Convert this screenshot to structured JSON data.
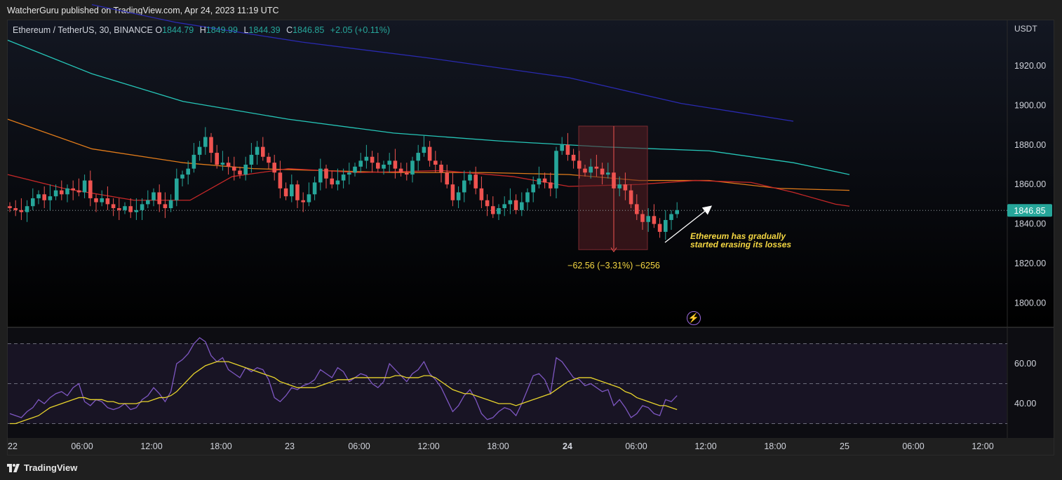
{
  "header": {
    "published": "WatcherGuru published on TradingView.com, Apr 24, 2023 11:19 UTC"
  },
  "symbol": {
    "name": "Ethereum / TetherUS, 30, BINANCE",
    "o_label": "O",
    "o": "1844.79",
    "h_label": "H",
    "h": "1849.99",
    "l_label": "L",
    "l": "1844.39",
    "c_label": "C",
    "c": "1846.85",
    "change": "+2.05 (+0.11%)"
  },
  "currency": "USDT",
  "footer": {
    "brand": "TradingView"
  },
  "colors": {
    "bg_top": "#131722",
    "bg_bottom": "#000000",
    "up": "#26a69a",
    "down": "#ef5350",
    "ema_teal": "#26c6b8",
    "ema_orange": "#e07b1a",
    "ema_red": "#c62828",
    "ema_blue": "#2a2ab0",
    "rsi": "#7e57c2",
    "rsi_ma": "#e8d42c",
    "annotation": "#f5d742",
    "measure_fill": "#5a1f24"
  },
  "chart_data": [
    {
      "type": "candlestick",
      "ylabel": "USDT",
      "ylim": [
        1794.5,
        1942
      ],
      "yticks": [
        "1920.00",
        "1900.00",
        "1880.00",
        "1860.00",
        "1840.00",
        "1820.00",
        "1800.00"
      ],
      "ytick_values": [
        1920,
        1900,
        1880,
        1860,
        1840,
        1820,
        1800
      ],
      "xticks": [
        "22",
        "06:00",
        "12:00",
        "18:00",
        "23",
        "06:00",
        "12:00",
        "18:00",
        "24",
        "06:00",
        "12:00",
        "18:00",
        "25",
        "06:00",
        "12:00"
      ],
      "last_price": "1846.85",
      "last_price_value": 1846.85,
      "closes": [
        1848,
        1847,
        1846,
        1849,
        1853,
        1855,
        1852,
        1854,
        1857,
        1855,
        1858,
        1857,
        1856,
        1862,
        1853,
        1851,
        1853,
        1850,
        1848,
        1847,
        1849,
        1846,
        1847,
        1850,
        1852,
        1856,
        1850,
        1848,
        1852,
        1863,
        1865,
        1868,
        1875,
        1879,
        1884,
        1876,
        1870,
        1871,
        1869,
        1867,
        1865,
        1870,
        1875,
        1879,
        1874,
        1871,
        1866,
        1858,
        1854,
        1860,
        1852,
        1851,
        1855,
        1861,
        1868,
        1863,
        1860,
        1862,
        1865,
        1866,
        1869,
        1872,
        1874,
        1871,
        1868,
        1870,
        1872,
        1868,
        1866,
        1865,
        1872,
        1876,
        1879,
        1872,
        1870,
        1866,
        1860,
        1852,
        1856,
        1862,
        1865,
        1858,
        1852,
        1849,
        1845,
        1848,
        1850,
        1852,
        1847,
        1851,
        1856,
        1860,
        1863,
        1861,
        1858,
        1877,
        1880,
        1875,
        1872,
        1868,
        1866,
        1869,
        1868,
        1865,
        1866,
        1858,
        1860,
        1857,
        1850,
        1845,
        1841,
        1844,
        1840,
        1836,
        1842,
        1845,
        1847
      ],
      "measure": {
        "label": "−62.56 (−3.31%) −6256"
      },
      "annotation": {
        "line1": "Ethereum has gradually",
        "line2": "started erasing its losses"
      },
      "ema_series": [
        {
          "color": "#2a2ab0",
          "values": [
            [
              120,
              1951
            ],
            [
              240,
              1942
            ],
            [
              420,
              1932
            ],
            [
              600,
              1924
            ],
            [
              800,
              1914
            ],
            [
              960,
              1901
            ],
            [
              1120,
              1892
            ]
          ]
        },
        {
          "color": "#26c6b8",
          "values": [
            [
              0,
              1933
            ],
            [
              120,
              1916
            ],
            [
              250,
              1902
            ],
            [
              400,
              1893
            ],
            [
              550,
              1886
            ],
            [
              700,
              1882
            ],
            [
              850,
              1879
            ],
            [
              1000,
              1877
            ],
            [
              1120,
              1871
            ],
            [
              1200,
              1865
            ]
          ]
        },
        {
          "color": "#e07b1a",
          "values": [
            [
              0,
              1893
            ],
            [
              120,
              1878
            ],
            [
              250,
              1871
            ],
            [
              350,
              1868
            ],
            [
              450,
              1867
            ],
            [
              550,
              1866
            ],
            [
              680,
              1866
            ],
            [
              800,
              1865
            ],
            [
              900,
              1862
            ],
            [
              1000,
              1862
            ],
            [
              1100,
              1858
            ],
            [
              1200,
              1857
            ]
          ]
        },
        {
          "color": "#c62828",
          "values": [
            [
              0,
              1865
            ],
            [
              80,
              1858
            ],
            [
              180,
              1852
            ],
            [
              260,
              1852
            ],
            [
              320,
              1864
            ],
            [
              400,
              1868
            ],
            [
              500,
              1866
            ],
            [
              620,
              1867
            ],
            [
              720,
              1864
            ],
            [
              800,
              1859
            ],
            [
              900,
              1860
            ],
            [
              980,
              1862
            ],
            [
              1060,
              1861
            ],
            [
              1120,
              1856
            ],
            [
              1180,
              1850
            ],
            [
              1200,
              1849
            ]
          ]
        }
      ]
    },
    {
      "type": "line",
      "ylim": [
        27,
        76
      ],
      "yticks": [
        "60.00",
        "40.00"
      ],
      "ytick_values": [
        60,
        40
      ],
      "bands": [
        70,
        50,
        30
      ],
      "series": [
        {
          "color": "#7e57c2",
          "values": [
            35,
            34,
            33,
            36,
            38,
            42,
            40,
            43,
            45,
            46,
            44,
            48,
            50,
            41,
            39,
            42,
            41,
            38,
            37,
            38,
            40,
            37,
            38,
            42,
            44,
            48,
            45,
            41,
            46,
            60,
            62,
            65,
            70,
            73,
            71,
            64,
            61,
            63,
            57,
            55,
            53,
            58,
            56,
            58,
            57,
            52,
            43,
            41,
            44,
            48,
            47,
            49,
            50,
            52,
            57,
            55,
            53,
            58,
            56,
            51,
            53,
            55,
            54,
            50,
            48,
            51,
            60,
            57,
            54,
            51,
            55,
            57,
            61,
            55,
            52,
            48,
            42,
            36,
            39,
            44,
            47,
            42,
            35,
            32,
            33,
            36,
            38,
            37,
            34,
            40,
            47,
            54,
            55,
            52,
            45,
            63,
            61,
            57,
            53,
            52,
            49,
            50,
            48,
            46,
            47,
            39,
            42,
            38,
            33,
            35,
            39,
            38,
            35,
            34,
            42,
            41,
            44
          ]
        },
        {
          "color": "#e8d42c",
          "values": [
            30,
            30,
            31,
            32,
            33,
            34,
            36,
            38,
            39,
            40,
            41,
            42,
            43,
            43,
            42,
            42,
            42,
            41,
            41,
            40,
            40,
            40,
            40,
            41,
            41,
            42,
            43,
            43,
            44,
            46,
            49,
            52,
            55,
            57,
            59,
            60,
            61,
            61,
            61,
            60,
            59,
            58,
            57,
            56,
            55,
            54,
            53,
            51,
            50,
            49,
            48,
            48,
            48,
            48,
            49,
            50,
            51,
            52,
            52,
            52,
            53,
            53,
            53,
            53,
            53,
            53,
            53,
            54,
            54,
            53,
            53,
            53,
            54,
            54,
            53,
            51,
            49,
            47,
            46,
            45,
            45,
            44,
            43,
            42,
            41,
            40,
            40,
            40,
            39,
            40,
            41,
            42,
            43,
            44,
            45,
            47,
            49,
            51,
            52,
            53,
            53,
            53,
            52,
            51,
            50,
            49,
            48,
            46,
            45,
            43,
            42,
            41,
            40,
            39,
            39,
            38,
            37
          ]
        }
      ]
    }
  ]
}
